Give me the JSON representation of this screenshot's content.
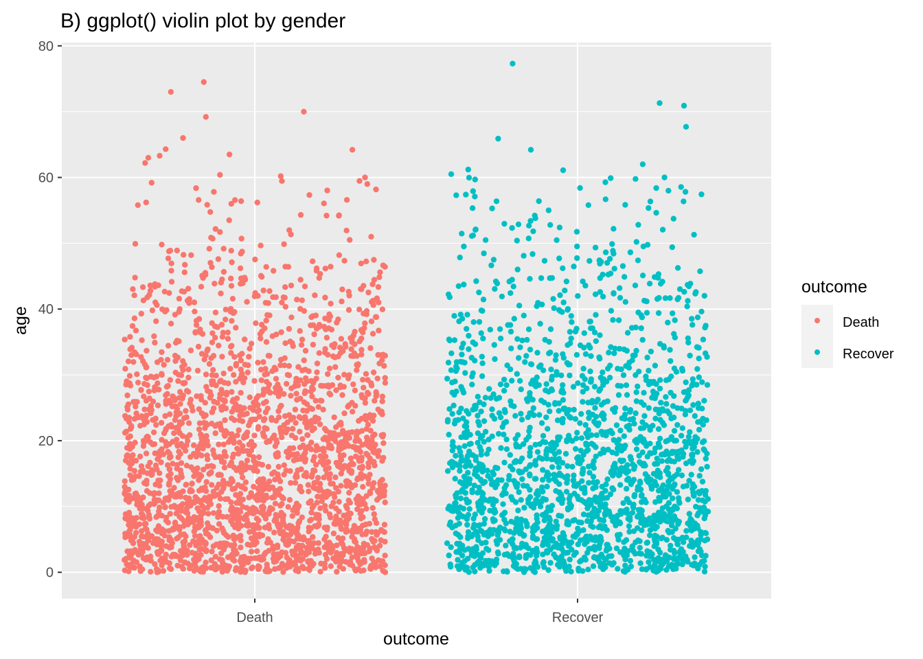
{
  "chart_data": {
    "type": "scatter",
    "title": "B) ggplot() violin plot by gender",
    "xlabel": "outcome",
    "ylabel": "age",
    "categories": [
      "Death",
      "Recover"
    ],
    "y_ticks": [
      "0",
      "20",
      "40",
      "60",
      "80"
    ],
    "y_tick_values": [
      0,
      20,
      40,
      60,
      80
    ],
    "ylim": [
      -4,
      80.5
    ],
    "grid": true,
    "jitter": "horizontal",
    "legend": {
      "title": "outcome",
      "position": "right",
      "entries": [
        "Death",
        "Recover"
      ]
    },
    "colors": {
      "Death": "#F8766D",
      "Recover": "#00BFC4",
      "panel": "#EBEBEB",
      "grid": "#FFFFFF",
      "legend_key": "#F2F2F2"
    },
    "series": [
      {
        "name": "Death",
        "n_points": 2400,
        "notable_values": [
          74.5,
          73,
          70,
          69.2,
          66,
          64.3,
          64.2,
          63.5,
          63.3,
          63,
          62.2,
          60.4,
          60.2,
          60,
          59.2,
          59,
          56.4,
          56.2,
          56,
          55.8,
          54.3,
          54.2,
          53.5,
          51,
          50.7
        ],
        "age_distribution": [
          {
            "range": [
              0,
              5
            ],
            "share": 0.19
          },
          {
            "range": [
              5,
              10
            ],
            "share": 0.16
          },
          {
            "range": [
              10,
              15
            ],
            "share": 0.14
          },
          {
            "range": [
              15,
              20
            ],
            "share": 0.13
          },
          {
            "range": [
              20,
              25
            ],
            "share": 0.11
          },
          {
            "range": [
              25,
              30
            ],
            "share": 0.09
          },
          {
            "range": [
              30,
              35
            ],
            "share": 0.06
          },
          {
            "range": [
              35,
              40
            ],
            "share": 0.045
          },
          {
            "range": [
              40,
              45
            ],
            "share": 0.035
          },
          {
            "range": [
              45,
              50
            ],
            "share": 0.02
          },
          {
            "range": [
              50,
              60
            ],
            "share": 0.01
          }
        ]
      },
      {
        "name": "Recover",
        "n_points": 1950,
        "notable_values": [
          77.3,
          71.3,
          70.9,
          67.7,
          65.9,
          64.2,
          62,
          61.2,
          61.1,
          60.5,
          60,
          58.4,
          57.1,
          56.4,
          55.3,
          54.2,
          53.8,
          53.4,
          52.4,
          52.2,
          52.1,
          51.3,
          51.2,
          51.1,
          50.4
        ],
        "age_distribution": [
          {
            "range": [
              0,
              5
            ],
            "share": 0.19
          },
          {
            "range": [
              5,
              10
            ],
            "share": 0.17
          },
          {
            "range": [
              10,
              15
            ],
            "share": 0.15
          },
          {
            "range": [
              15,
              20
            ],
            "share": 0.135
          },
          {
            "range": [
              20,
              25
            ],
            "share": 0.105
          },
          {
            "range": [
              25,
              30
            ],
            "share": 0.08
          },
          {
            "range": [
              30,
              35
            ],
            "share": 0.055
          },
          {
            "range": [
              35,
              40
            ],
            "share": 0.04
          },
          {
            "range": [
              40,
              45
            ],
            "share": 0.035
          },
          {
            "range": [
              45,
              50
            ],
            "share": 0.02
          },
          {
            "range": [
              50,
              60
            ],
            "share": 0.02
          }
        ]
      }
    ]
  }
}
